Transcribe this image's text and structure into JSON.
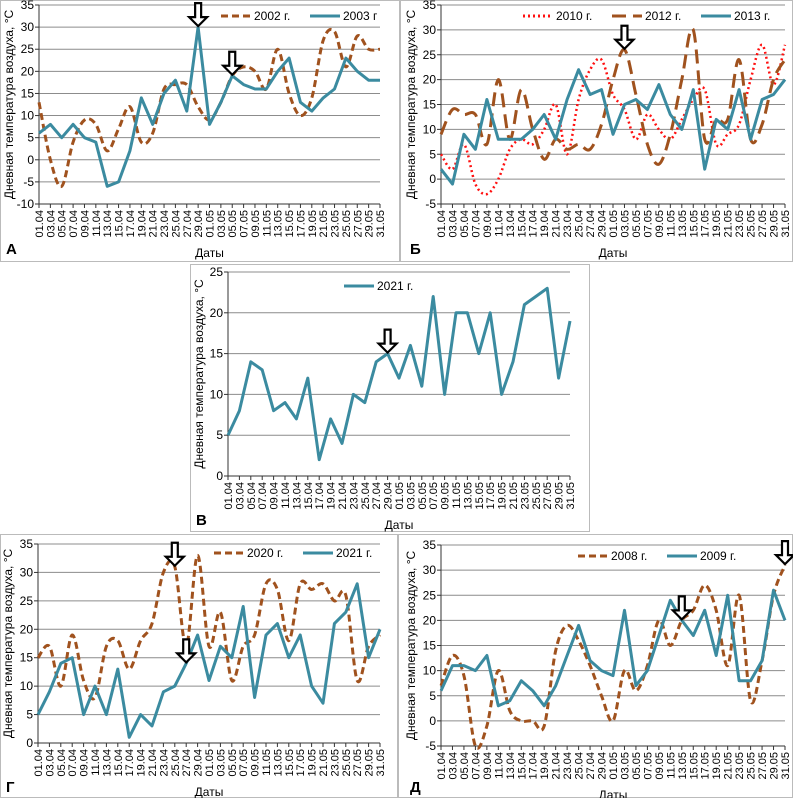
{
  "categories": [
    "01.04",
    "03.04",
    "05.04",
    "07.04",
    "09.04",
    "11.04",
    "13.04",
    "15.04",
    "17.04",
    "19.04",
    "21.04",
    "23.04",
    "25.04",
    "27.04",
    "29.04",
    "01.05",
    "03.05",
    "05.05",
    "07.05",
    "09.05",
    "11.05",
    "13.05",
    "15.05",
    "17.05",
    "19.05",
    "21.05",
    "23.05",
    "25.05",
    "27.05",
    "29.05",
    "31.05"
  ],
  "chart_data": [
    {
      "panel_label": "А",
      "type": "line",
      "xlabel": "Даты",
      "ylabel": "Дневная температура воздуха, °С",
      "ylim": [
        -10,
        35
      ],
      "ytick_step": 5,
      "grid": true,
      "legend": "top-right",
      "series": [
        {
          "name": "2002 г.",
          "style": "dashed",
          "smooth": true,
          "color": "#A0521E",
          "values": [
            13,
            0,
            -6,
            4,
            9,
            8,
            2,
            7,
            12,
            4,
            6,
            16,
            17,
            17,
            12,
            9,
            13,
            19,
            21,
            20,
            16,
            25,
            15,
            10,
            14,
            27,
            29,
            21,
            28,
            25,
            25
          ]
        },
        {
          "name": "2003 г",
          "style": "solid",
          "smooth": false,
          "color": "#3B8BA0",
          "values": [
            6,
            8,
            5,
            8,
            5,
            4,
            -6,
            -5,
            2,
            14,
            8,
            15,
            18,
            11,
            30,
            8,
            13,
            19,
            17,
            16,
            16,
            20,
            23,
            13,
            11,
            14,
            16,
            23,
            20,
            18,
            18
          ]
        }
      ],
      "arrows": [
        {
          "x": "29.04",
          "y": 30
        },
        {
          "x": "05.05",
          "y": 19
        }
      ]
    },
    {
      "panel_label": "Б",
      "type": "line",
      "xlabel": "Даты",
      "ylabel": "Дневная температура воздуха, °С",
      "ylim": [
        -5,
        35
      ],
      "ytick_step": 5,
      "grid": true,
      "legend": "top-right",
      "series": [
        {
          "name": "2010 г.",
          "style": "dotted",
          "smooth": true,
          "color": "#FF1010",
          "values": [
            5,
            2,
            7,
            -1,
            -3,
            0,
            6,
            8,
            7,
            10,
            15,
            5,
            16,
            22,
            24,
            17,
            14,
            8,
            13,
            10,
            8,
            12,
            16,
            18,
            7,
            9,
            11,
            20,
            27,
            19,
            27
          ]
        },
        {
          "name": "2012 г.",
          "style": "longdash",
          "smooth": true,
          "color": "#A0521E",
          "values": [
            9,
            14,
            13,
            13,
            7,
            20,
            8,
            18,
            10,
            4,
            8,
            6,
            7,
            6,
            11,
            20,
            26,
            17,
            7,
            3,
            9,
            20,
            30,
            8,
            12,
            12,
            24,
            8,
            11,
            20,
            24
          ]
        },
        {
          "name": "2013 г.",
          "style": "solid",
          "smooth": false,
          "color": "#3B8BA0",
          "values": [
            2,
            -1,
            9,
            6,
            16,
            8,
            8,
            8,
            10,
            13,
            8,
            16,
            22,
            17,
            18,
            9,
            15,
            16,
            14,
            19,
            13,
            10,
            18,
            2,
            12,
            10,
            18,
            8,
            16,
            17,
            20
          ]
        }
      ],
      "arrows": [
        {
          "x": "03.05",
          "y": 26
        }
      ]
    },
    {
      "panel_label": "В",
      "type": "line",
      "xlabel": "Даты",
      "ylabel": "Дневная температура воздуха, °С",
      "ylim": [
        0,
        25
      ],
      "ytick_step": 5,
      "grid": true,
      "legend": "top",
      "series": [
        {
          "name": "2021 г.",
          "style": "solid",
          "smooth": false,
          "color": "#3B8BA0",
          "values": [
            5,
            8,
            14,
            13,
            8,
            9,
            7,
            12,
            2,
            7,
            4,
            10,
            9,
            14,
            15,
            12,
            16,
            11,
            22,
            10,
            20,
            20,
            15,
            20,
            10,
            14,
            21,
            22,
            23,
            12,
            19
          ]
        }
      ],
      "arrows": [
        {
          "x": "29.04",
          "y": 15
        }
      ]
    },
    {
      "panel_label": "Г",
      "type": "line",
      "xlabel": "Даты",
      "ylabel": "Дневная температура воздуха, °С",
      "ylim": [
        0,
        35
      ],
      "ytick_step": 5,
      "grid": true,
      "legend": "top-right",
      "series": [
        {
          "name": "2020 г.",
          "style": "dashed",
          "smooth": true,
          "color": "#A0521E",
          "values": [
            15,
            17,
            10,
            19,
            11,
            8,
            17,
            18,
            13,
            18,
            21,
            30,
            31,
            17,
            33,
            17,
            23,
            11,
            17,
            19,
            28,
            27,
            18,
            28,
            27,
            28,
            25,
            26,
            11,
            17,
            19
          ]
        },
        {
          "name": "2021 г.",
          "style": "solid",
          "smooth": false,
          "color": "#3B8BA0",
          "values": [
            5,
            9,
            14,
            15,
            5,
            10,
            5,
            13,
            1,
            5,
            3,
            9,
            10,
            14,
            19,
            11,
            17,
            15,
            24,
            8,
            19,
            21,
            15,
            19,
            10,
            7,
            21,
            23,
            28,
            15,
            20
          ]
        }
      ],
      "arrows": [
        {
          "x": "25.04",
          "y": 31
        },
        {
          "x": "27.04",
          "y": 14
        }
      ]
    },
    {
      "panel_label": "Д",
      "type": "line",
      "xlabel": "Даты",
      "ylabel": "Дневная температура воздуха, °С",
      "ylim": [
        -5,
        35
      ],
      "ytick_step": 5,
      "grid": true,
      "legend": "top-right",
      "series": [
        {
          "name": "2008 г.",
          "style": "dashed",
          "smooth": true,
          "color": "#A0521E",
          "values": [
            7,
            13,
            9,
            -5,
            -1,
            10,
            2,
            0,
            0,
            -1,
            14,
            19,
            16,
            11,
            5,
            0,
            10,
            6,
            11,
            20,
            15,
            20,
            22,
            27,
            22,
            11,
            25,
            4,
            12,
            25,
            31
          ]
        },
        {
          "name": "2009 г.",
          "style": "solid",
          "smooth": false,
          "color": "#3B8BA0",
          "values": [
            6,
            11,
            11,
            10,
            13,
            3,
            4,
            8,
            6,
            3,
            7,
            13,
            19,
            12,
            10,
            9,
            22,
            7,
            10,
            17,
            24,
            20,
            17,
            22,
            13,
            25,
            8,
            8,
            12,
            26,
            20
          ]
        }
      ],
      "arrows": [
        {
          "x": "13.05",
          "y": 20
        },
        {
          "x": "31.05",
          "y": 31
        }
      ]
    }
  ]
}
